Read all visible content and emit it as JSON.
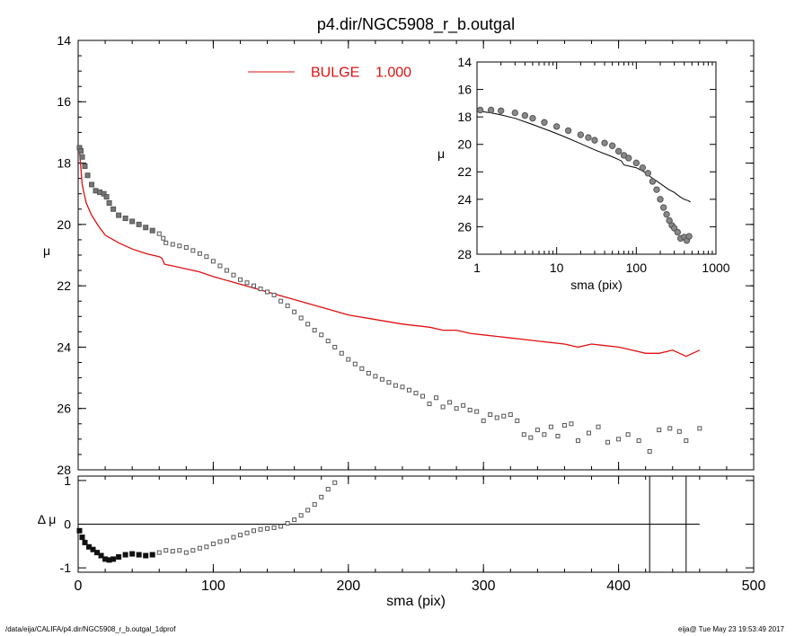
{
  "footer": {
    "left": "/data/eija/CALIFA/p4.dir/NGC5908_r_b.outgal_1dprof",
    "right": "eija@  Tue May 23 19:53:49 2017"
  },
  "colors": {
    "bulge": "#e01010",
    "data_points": "#555555",
    "axes": "#000000"
  },
  "chart_data": [
    {
      "id": "main",
      "type": "scatter",
      "title": "p4.dir/NGC5908_r_b.outgal",
      "xlabel": "",
      "ylabel": "μ",
      "xlim": [
        0,
        500
      ],
      "ylim": [
        28,
        14
      ],
      "y_inverted": true,
      "xticks": [
        0,
        100,
        200,
        300,
        400,
        500
      ],
      "yticks": [
        14,
        16,
        18,
        20,
        22,
        24,
        26,
        28
      ],
      "legend": {
        "label": "BULGE",
        "value": "1.000",
        "placement": "top-left"
      },
      "series": [
        {
          "name": "BULGE",
          "kind": "line",
          "color": "#e01010",
          "x": [
            1,
            3,
            6,
            10,
            15,
            20,
            30,
            40,
            50,
            60,
            62,
            64,
            70,
            80,
            90,
            100,
            120,
            140,
            160,
            180,
            200,
            220,
            240,
            260,
            270,
            280,
            290,
            300,
            310,
            320,
            330,
            340,
            350,
            360,
            370,
            380,
            390,
            400,
            410,
            420,
            430,
            440,
            450,
            460
          ],
          "y": [
            17.6,
            18.7,
            19.3,
            19.7,
            20.05,
            20.35,
            20.6,
            20.8,
            20.95,
            21.05,
            21.1,
            21.3,
            21.35,
            21.45,
            21.55,
            21.7,
            21.95,
            22.2,
            22.45,
            22.7,
            22.95,
            23.1,
            23.25,
            23.35,
            23.45,
            23.45,
            23.55,
            23.6,
            23.65,
            23.7,
            23.75,
            23.8,
            23.85,
            23.9,
            24.0,
            23.9,
            23.95,
            24.0,
            24.1,
            24.2,
            24.2,
            24.1,
            24.3,
            24.1
          ]
        },
        {
          "name": "",
          "kind": "points",
          "color": "#555555",
          "x": [
            1,
            2,
            3,
            5,
            7,
            10,
            13,
            16,
            19,
            21,
            23,
            26,
            30,
            35,
            40,
            45,
            50,
            55,
            60,
            63,
            65,
            70,
            75,
            80,
            85,
            90,
            95,
            100,
            105,
            110,
            115,
            120,
            125,
            130,
            135,
            140,
            145,
            150,
            155,
            160,
            165,
            170,
            175,
            180,
            185,
            190,
            195,
            200,
            205,
            210,
            215,
            220,
            225,
            230,
            235,
            240,
            245,
            250,
            255,
            260,
            265,
            270,
            275,
            280,
            285,
            290,
            295,
            300,
            305,
            310,
            315,
            320,
            325,
            330,
            335,
            340,
            345,
            350,
            355,
            360,
            365,
            370,
            378,
            385,
            392,
            400,
            407,
            415,
            423,
            430,
            438,
            445,
            450,
            460
          ],
          "y": [
            17.5,
            17.6,
            17.8,
            18.1,
            18.4,
            18.7,
            18.9,
            18.95,
            19.0,
            19.1,
            19.3,
            19.5,
            19.7,
            19.8,
            19.9,
            20.0,
            20.1,
            20.2,
            20.3,
            20.45,
            20.6,
            20.65,
            20.7,
            20.75,
            20.85,
            20.95,
            21.05,
            21.2,
            21.35,
            21.5,
            21.65,
            21.8,
            21.9,
            22.0,
            22.1,
            22.2,
            22.3,
            22.5,
            22.65,
            22.85,
            23.05,
            23.25,
            23.45,
            23.6,
            23.8,
            24.0,
            24.2,
            24.4,
            24.55,
            24.7,
            24.85,
            24.95,
            25.05,
            25.15,
            25.25,
            25.3,
            25.4,
            25.5,
            25.6,
            25.85,
            25.65,
            25.95,
            25.8,
            26.0,
            25.9,
            26.05,
            26.1,
            26.4,
            26.2,
            26.3,
            26.25,
            26.2,
            26.4,
            26.85,
            26.95,
            26.7,
            26.85,
            26.6,
            26.9,
            26.55,
            26.5,
            27.05,
            26.8,
            26.6,
            27.1,
            27.0,
            26.85,
            27.05,
            27.4,
            26.7,
            26.65,
            26.75,
            27.05,
            26.65
          ]
        }
      ]
    },
    {
      "id": "inset",
      "type": "line",
      "title": "",
      "xlabel": "sma (pix)",
      "ylabel": "μ",
      "x_scale": "log",
      "xlim": [
        1,
        1000
      ],
      "ylim": [
        28,
        14
      ],
      "y_inverted": true,
      "xticks": [
        1,
        10,
        100,
        1000
      ],
      "yticks": [
        14,
        16,
        18,
        20,
        22,
        24,
        26,
        28
      ],
      "series": [
        {
          "name": "",
          "kind": "line",
          "color": "#000000",
          "x": [
            1.1,
            1.5,
            2,
            3,
            5,
            8,
            12,
            20,
            30,
            50,
            65,
            70,
            100,
            130,
            150,
            200,
            250,
            300,
            350,
            400,
            450,
            480
          ],
          "y": [
            17.6,
            17.7,
            17.85,
            18.1,
            18.55,
            19.0,
            19.4,
            19.95,
            20.4,
            20.9,
            21.2,
            21.5,
            21.7,
            22.05,
            22.35,
            22.85,
            23.25,
            23.5,
            23.8,
            24.0,
            24.1,
            24.2
          ]
        },
        {
          "name": "",
          "kind": "points",
          "color": "#555555",
          "x": [
            1.1,
            1.5,
            2,
            3,
            4,
            5,
            7,
            10,
            14,
            20,
            25,
            30,
            40,
            50,
            60,
            70,
            80,
            100,
            120,
            140,
            160,
            180,
            200,
            220,
            240,
            260,
            280,
            300,
            330,
            360,
            400,
            430,
            460
          ],
          "y": [
            17.5,
            17.5,
            17.55,
            17.7,
            17.9,
            18.1,
            18.4,
            18.7,
            19.0,
            19.3,
            19.5,
            19.7,
            19.9,
            20.1,
            20.5,
            20.8,
            21.0,
            21.35,
            21.7,
            22.1,
            22.7,
            23.3,
            24.0,
            24.6,
            25.1,
            25.55,
            25.9,
            26.1,
            26.4,
            26.85,
            26.75,
            27.0,
            26.7
          ]
        }
      ]
    },
    {
      "id": "residual",
      "type": "scatter",
      "title": "",
      "xlabel": "sma (pix)",
      "ylabel": "Δ μ",
      "xlim": [
        0,
        500
      ],
      "ylim": [
        -1.1,
        1.1
      ],
      "xticks": [
        0,
        100,
        200,
        300,
        400,
        500
      ],
      "yticks": [
        -1,
        0,
        1
      ],
      "reference_lines": {
        "horizontal_at": 0,
        "horizontal_end_x": 460,
        "vertical_at": [
          423,
          450
        ]
      },
      "series": [
        {
          "name": "",
          "kind": "points",
          "color": "#222222",
          "x": [
            1,
            3,
            5,
            8,
            11,
            14,
            17,
            20,
            23,
            26,
            30,
            35,
            40,
            45,
            50,
            55,
            60,
            65,
            70,
            75,
            80,
            85,
            90,
            95,
            100,
            105,
            110,
            115,
            120,
            125,
            130,
            135,
            140,
            145,
            150,
            155,
            160,
            165,
            170,
            175,
            180,
            185,
            190
          ],
          "y": [
            -0.15,
            -0.3,
            -0.42,
            -0.52,
            -0.58,
            -0.65,
            -0.72,
            -0.8,
            -0.82,
            -0.8,
            -0.75,
            -0.7,
            -0.68,
            -0.7,
            -0.72,
            -0.7,
            -0.65,
            -0.6,
            -0.62,
            -0.6,
            -0.65,
            -0.6,
            -0.55,
            -0.52,
            -0.45,
            -0.4,
            -0.38,
            -0.3,
            -0.25,
            -0.2,
            -0.15,
            -0.12,
            -0.1,
            -0.08,
            -0.05,
            0.02,
            0.1,
            0.2,
            0.32,
            0.45,
            0.62,
            0.8,
            0.95
          ]
        }
      ]
    }
  ]
}
